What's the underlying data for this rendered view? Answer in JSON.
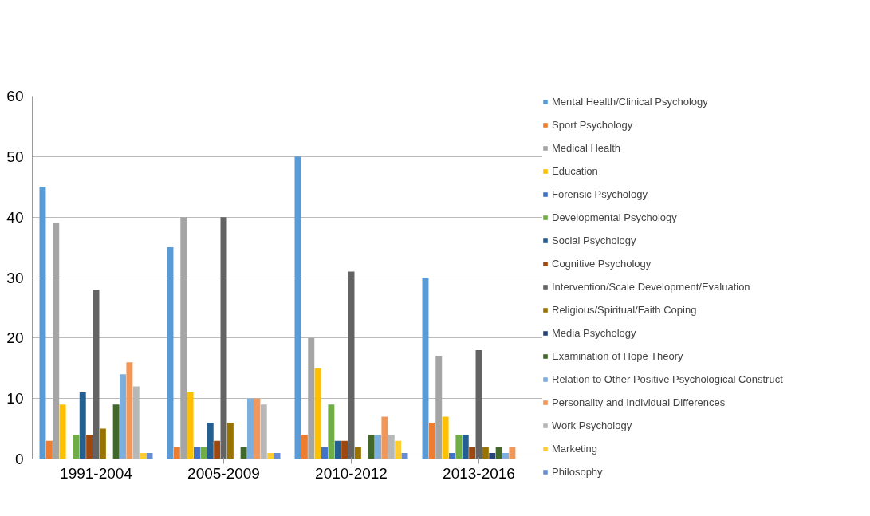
{
  "chart_data": {
    "type": "bar",
    "categories": [
      "1991-2004",
      "2005-2009",
      "2010-2012",
      "2013-2016"
    ],
    "ylim": [
      0,
      60
    ],
    "yticks": [
      0,
      10,
      20,
      30,
      40,
      50,
      60
    ],
    "grid": "y",
    "legend": "right",
    "series": [
      {
        "name": "Mental Health/Clinical Psychology",
        "color": "#5b9bd5",
        "values": [
          45,
          35,
          50,
          30
        ]
      },
      {
        "name": "Sport Psychology",
        "color": "#ed7d31",
        "values": [
          3,
          2,
          4,
          6
        ]
      },
      {
        "name": "Medical Health",
        "color": "#a5a5a5",
        "values": [
          39,
          40,
          20,
          17
        ]
      },
      {
        "name": "Education",
        "color": "#ffc000",
        "values": [
          9,
          11,
          15,
          7
        ]
      },
      {
        "name": "Forensic Psychology",
        "color": "#4472c4",
        "values": [
          0,
          2,
          2,
          1
        ]
      },
      {
        "name": "Developmental Psychology",
        "color": "#70ad47",
        "values": [
          4,
          2,
          9,
          4
        ]
      },
      {
        "name": "Social Psychology",
        "color": "#255e91",
        "values": [
          11,
          6,
          3,
          4
        ]
      },
      {
        "name": "Cognitive Psychology",
        "color": "#9e480e",
        "values": [
          4,
          3,
          3,
          2
        ]
      },
      {
        "name": "Intervention/Scale Development/Evaluation",
        "color": "#636363",
        "values": [
          28,
          40,
          31,
          18
        ]
      },
      {
        "name": "Religious/Spiritual/Faith Coping",
        "color": "#997300",
        "values": [
          5,
          6,
          2,
          2
        ]
      },
      {
        "name": "Media Psychology",
        "color": "#264478",
        "values": [
          0,
          0,
          0,
          1
        ]
      },
      {
        "name": "Examination of Hope Theory",
        "color": "#43682b",
        "values": [
          9,
          2,
          4,
          2
        ]
      },
      {
        "name": "Relation to Other Positive Psychological Construct",
        "color": "#7cafdd",
        "values": [
          14,
          10,
          4,
          1
        ]
      },
      {
        "name": "Personality and Individual Differences",
        "color": "#f1975a",
        "values": [
          16,
          10,
          7,
          2
        ]
      },
      {
        "name": "Work Psychology",
        "color": "#b7b7b7",
        "values": [
          12,
          9,
          4,
          0
        ]
      },
      {
        "name": "Marketing",
        "color": "#ffcd33",
        "values": [
          1,
          1,
          3,
          0
        ]
      },
      {
        "name": "Philosophy",
        "color": "#698ed0",
        "values": [
          1,
          1,
          1,
          0
        ]
      }
    ]
  }
}
